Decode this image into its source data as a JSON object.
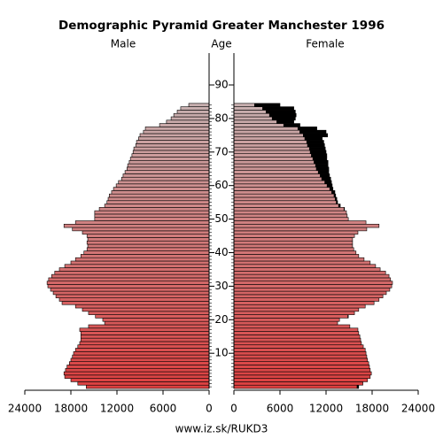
{
  "chart_data": {
    "type": "pyramid",
    "title": "Demographic Pyramid Greater Manchester 1996",
    "left_label": "Male",
    "center_label": "Age",
    "right_label": "Female",
    "footer": "www.iz.sk/RUKD3",
    "ages": [
      0,
      1,
      2,
      3,
      4,
      5,
      6,
      7,
      8,
      9,
      10,
      11,
      12,
      13,
      14,
      15,
      16,
      17,
      18,
      19,
      20,
      21,
      22,
      23,
      24,
      25,
      26,
      27,
      28,
      29,
      30,
      31,
      32,
      33,
      34,
      35,
      36,
      37,
      38,
      39,
      40,
      41,
      42,
      43,
      44,
      45,
      46,
      47,
      48,
      49,
      50,
      51,
      52,
      53,
      54,
      55,
      56,
      57,
      58,
      59,
      60,
      61,
      62,
      63,
      64,
      65,
      66,
      67,
      68,
      69,
      70,
      71,
      72,
      73,
      74,
      75,
      76,
      77,
      78,
      79,
      80,
      81,
      82,
      83,
      84
    ],
    "series": [
      {
        "name": "Male",
        "values": [
          16000,
          17100,
          18000,
          18800,
          18900,
          18700,
          18500,
          18200,
          18000,
          17800,
          17650,
          17400,
          17100,
          16850,
          16700,
          16700,
          16700,
          16850,
          15700,
          13600,
          13850,
          14800,
          15700,
          16500,
          17400,
          19150,
          19500,
          19950,
          20300,
          20650,
          21000,
          21100,
          20900,
          20500,
          20100,
          19500,
          18800,
          18000,
          17400,
          16700,
          16300,
          15900,
          15800,
          15900,
          15800,
          15900,
          16500,
          17800,
          18900,
          17400,
          14900,
          14900,
          14900,
          14300,
          13600,
          13300,
          13150,
          13000,
          12700,
          12450,
          12100,
          11800,
          11400,
          11200,
          10950,
          10700,
          10600,
          10400,
          10250,
          10050,
          9900,
          9800,
          9550,
          9450,
          9200,
          9000,
          8550,
          8300,
          6450,
          5550,
          4950,
          4600,
          4150,
          3700,
          2650
        ]
      },
      {
        "name": "Female",
        "values": [
          16250,
          16800,
          17400,
          17750,
          17900,
          17750,
          17650,
          17550,
          17400,
          17300,
          17200,
          17100,
          16850,
          16600,
          16500,
          16400,
          16250,
          16150,
          15100,
          13500,
          13750,
          14900,
          15700,
          16250,
          17100,
          18250,
          18900,
          19400,
          19850,
          20300,
          20550,
          20650,
          20400,
          20200,
          19750,
          19050,
          18450,
          17750,
          16950,
          16250,
          15900,
          15600,
          15450,
          15450,
          15450,
          15700,
          16150,
          17300,
          18900,
          17200,
          14900,
          14750,
          14650,
          14400,
          13850,
          13500,
          13400,
          13250,
          13150,
          12900,
          12800,
          12700,
          12600,
          12450,
          12350,
          12350,
          12250,
          12250,
          12100,
          12100,
          12000,
          11900,
          11800,
          11700,
          11500,
          12200,
          12000,
          10800,
          8600,
          7800,
          8000,
          8100,
          8000,
          7800,
          6000
        ]
      }
    ],
    "gradient": [
      "#dc4040",
      "#c8b0b0"
    ],
    "excess_color": "#000000",
    "xlim": [
      0,
      24000
    ],
    "xticks": [
      0,
      6000,
      12000,
      18000,
      24000
    ],
    "ylim": [
      -0.5,
      99.5
    ],
    "yticks": [
      10,
      20,
      30,
      40,
      50,
      60,
      70,
      80,
      90
    ]
  }
}
